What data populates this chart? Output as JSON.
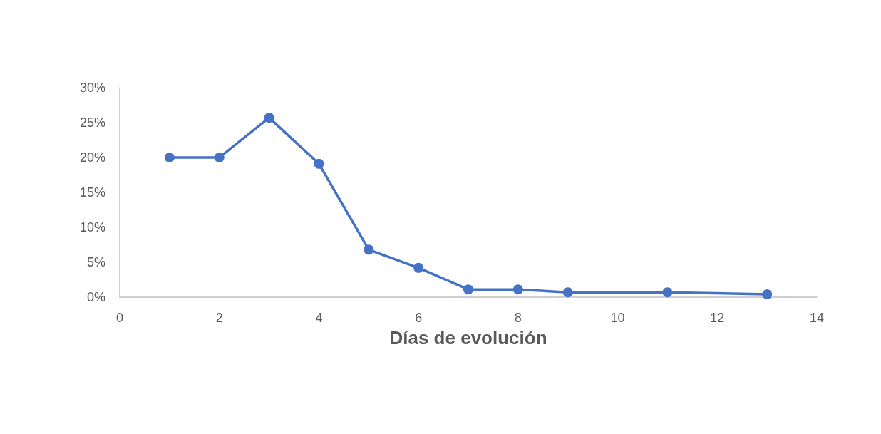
{
  "chart_data": {
    "type": "line",
    "xlabel": "Días de evolución",
    "x": [
      1,
      2,
      3,
      4,
      5,
      6,
      7,
      8,
      9,
      11,
      13
    ],
    "series": [
      {
        "color": "#4472c4",
        "values": [
          20,
          20,
          25.7,
          19.1,
          6.8,
          4.2,
          1.1,
          1.1,
          0.7,
          0.7,
          0.4
        ]
      }
    ],
    "xlim": [
      0,
      14
    ],
    "xticks": [
      0,
      2,
      4,
      6,
      8,
      10,
      12,
      14
    ],
    "ylim": [
      0,
      30
    ],
    "yticks": [
      {
        "value": 0,
        "label": "0%"
      },
      {
        "value": 5,
        "label": "5%"
      },
      {
        "value": 10,
        "label": "10%"
      },
      {
        "value": 15,
        "label": "15%"
      },
      {
        "value": 20,
        "label": "20%"
      },
      {
        "value": 25,
        "label": "25%"
      },
      {
        "value": 30,
        "label": "30%"
      }
    ],
    "grid": false,
    "marker": "circle",
    "line_style": "solid"
  }
}
